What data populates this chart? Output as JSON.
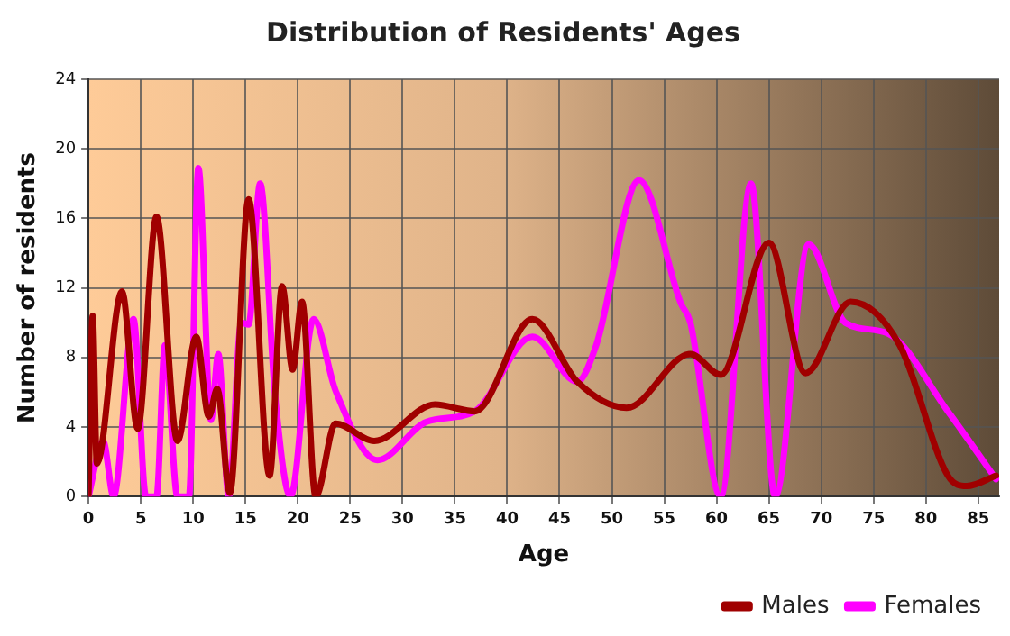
{
  "chart_data": {
    "type": "line",
    "title": "Distribution of Residents' Ages",
    "xlabel": "Age",
    "ylabel": "Number of residents",
    "xlim": [
      0,
      87
    ],
    "xticks": [
      0,
      5,
      10,
      15,
      20,
      25,
      30,
      35,
      40,
      45,
      50,
      55,
      60,
      65,
      70,
      75,
      80,
      85
    ],
    "ylim": [
      0,
      24
    ],
    "yticks": [
      0,
      4,
      8,
      12,
      16,
      20,
      24
    ],
    "grid": true,
    "legend": "bottom right",
    "marker": "none",
    "line_style": "solid",
    "series": [
      {
        "name": "Males",
        "color": "#a00000",
        "x": [
          0,
          0.4,
          0.8,
          3.2,
          4.7,
          6.5,
          8.5,
          10.3,
          11.5,
          12.3,
          13.5,
          15.3,
          17.3,
          18.5,
          19.5,
          20.4,
          21.7,
          23.6,
          27.3,
          33.1,
          36.9,
          42.4,
          46.7,
          51.4,
          57.5,
          60.4,
          65,
          68.5,
          72.8,
          77.5,
          82.1,
          83.9,
          86.7
        ],
        "values": [
          0,
          10.4,
          1.9,
          11.8,
          3.9,
          16.1,
          3.2,
          9.2,
          4.6,
          6.2,
          0.2,
          17.1,
          1.2,
          12.1,
          7.3,
          11.2,
          0,
          4.2,
          3.2,
          5.3,
          4.9,
          10.2,
          6.6,
          5.1,
          8.2,
          7.0,
          14.6,
          7.1,
          11.2,
          8.7,
          1.2,
          0.6,
          1.2
        ]
      },
      {
        "name": "Females",
        "color": "#ff00ff",
        "x": [
          0,
          1.4,
          2.4,
          4.3,
          5.5,
          6.5,
          7.3,
          8.5,
          9.6,
          10.5,
          11.7,
          12.4,
          13.4,
          14.6,
          15.3,
          16.4,
          17.8,
          19.3,
          21.5,
          23.6,
          27.6,
          32.3,
          36.9,
          42.4,
          46.7,
          48.5,
          52.6,
          56.6,
          57.5,
          60.4,
          63.3,
          65.6,
          68.8,
          72.3,
          76.3,
          82.1,
          86.7
        ],
        "values": [
          0,
          3.2,
          0,
          10.2,
          0,
          0,
          8.7,
          0,
          0,
          18.9,
          4.4,
          8.2,
          0,
          10,
          9.9,
          18,
          6,
          0,
          10.2,
          6.1,
          2.1,
          4.3,
          4.9,
          9.2,
          6.6,
          8.7,
          18.2,
          11.1,
          10,
          0,
          18,
          0,
          14.5,
          10,
          9.4,
          4.9,
          1
        ]
      }
    ]
  }
}
